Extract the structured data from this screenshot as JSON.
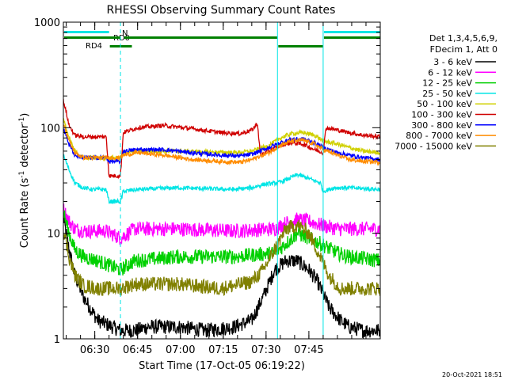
{
  "chart_data": {
    "type": "line",
    "title": "RHESSI Observing Summary Count Rates",
    "xlabel": "Start Time (17-Oct-05 06:19:22)",
    "ylabel_parts": [
      "Count Rate (s",
      "-1",
      " detector",
      "-1",
      ")"
    ],
    "y_scale": "log",
    "ylim": [
      1,
      1000
    ],
    "x_range_min": [
      0,
      111
    ],
    "x_ticks": [
      {
        "min": 11,
        "label": "06:30"
      },
      {
        "min": 26,
        "label": "06:45"
      },
      {
        "min": 41,
        "label": "07:00"
      },
      {
        "min": 56,
        "label": "07:15"
      },
      {
        "min": 71,
        "label": "07:30"
      },
      {
        "min": 86,
        "label": "07:45"
      }
    ],
    "y_ticks": [
      {
        "value": 1,
        "label": "1"
      },
      {
        "value": 10,
        "label": "10"
      },
      {
        "value": 100,
        "label": "100"
      },
      {
        "value": 1000,
        "label": "1000"
      }
    ],
    "legend_header": [
      "Det 1,3,4,5,6,9,",
      "FDecim 1, Att 0"
    ],
    "timestamp": "20-Oct-2021 18:51",
    "flag_labels": {
      "night": "N",
      "rd0": "RD0",
      "rd4": "RD4"
    },
    "flag_color": "#008000",
    "night_color": "#00e5e5",
    "night_intervals_min": [
      [
        0,
        16
      ],
      [
        91,
        111
      ]
    ],
    "boundaries_min": {
      "solid": [
        0,
        75,
        91
      ],
      "dashed": [
        20,
        111
      ]
    },
    "series": [
      {
        "name": "3 - 6 keV",
        "color": "#000000",
        "x": [
          0,
          2,
          4,
          7,
          12,
          20,
          25,
          30,
          40,
          50,
          60,
          66,
          70,
          74,
          78,
          82,
          86,
          89,
          93,
          97,
          100,
          105,
          111
        ],
        "y": [
          14,
          7,
          4,
          2.5,
          1.5,
          1.2,
          1.2,
          1.3,
          1.3,
          1.2,
          1.3,
          1.5,
          2.5,
          4.5,
          5.5,
          5.5,
          4.5,
          3.5,
          2,
          1.5,
          1.3,
          1.2,
          1.2
        ]
      },
      {
        "name": "6 - 12 keV",
        "color": "#ff00ff",
        "x": [
          0,
          2,
          4,
          8,
          15,
          20,
          25,
          40,
          60,
          74,
          78,
          82,
          86,
          90,
          96,
          111
        ],
        "y": [
          17,
          13,
          11,
          10.5,
          10.5,
          9,
          11,
          11,
          10.5,
          11,
          12.5,
          13.5,
          13,
          12,
          11,
          11
        ]
      },
      {
        "name": "12 - 25 keV",
        "color": "#00d000",
        "x": [
          0,
          2,
          4,
          7,
          12,
          20,
          25,
          40,
          60,
          74,
          78,
          82,
          86,
          90,
          96,
          100,
          111
        ],
        "y": [
          16,
          10,
          7,
          6,
          5.5,
          4.5,
          5.5,
          6,
          6,
          6.5,
          8,
          10,
          9,
          8,
          6.5,
          6,
          5.5
        ]
      },
      {
        "name": "25 - 50 keV",
        "color": "#00e5e5",
        "x": [
          0,
          2,
          4,
          7,
          10,
          15,
          16,
          20,
          21,
          26,
          40,
          60,
          66,
          70,
          75,
          78,
          82,
          86,
          90,
          91,
          95,
          100,
          111
        ],
        "y": [
          55,
          40,
          30,
          27,
          26,
          26,
          20,
          20,
          25,
          26,
          27,
          26,
          27,
          29,
          30,
          32,
          36,
          33,
          30,
          25,
          27,
          27,
          26
        ]
      },
      {
        "name": "50 - 100 keV",
        "color": "#d0d000",
        "x": [
          0,
          2,
          4,
          7,
          15,
          16,
          20,
          21,
          26,
          40,
          60,
          66,
          72,
          76,
          80,
          84,
          88,
          91,
          96,
          100,
          105,
          111
        ],
        "y": [
          120,
          80,
          60,
          52,
          52,
          52,
          52,
          58,
          60,
          60,
          58,
          60,
          68,
          80,
          88,
          90,
          85,
          75,
          70,
          65,
          60,
          58
        ]
      },
      {
        "name": "100 - 300 keV",
        "color": "#d00000",
        "x": [
          0,
          1,
          2,
          4,
          7,
          15,
          16,
          20,
          21,
          26,
          35,
          45,
          55,
          62,
          66,
          68,
          69,
          72,
          76,
          80,
          84,
          88,
          91,
          92,
          96,
          100,
          105,
          111
        ],
        "y": [
          180,
          140,
          105,
          85,
          82,
          82,
          35,
          35,
          90,
          100,
          105,
          98,
          90,
          88,
          95,
          110,
          55,
          60,
          68,
          72,
          70,
          62,
          58,
          100,
          95,
          90,
          85,
          82
        ]
      },
      {
        "name": "300 - 800 keV",
        "color": "#0000ff",
        "x": [
          0,
          2,
          4,
          7,
          15,
          16,
          20,
          21,
          26,
          35,
          45,
          55,
          62,
          66,
          72,
          76,
          80,
          84,
          88,
          91,
          96,
          100,
          105,
          111
        ],
        "y": [
          100,
          70,
          55,
          52,
          52,
          48,
          48,
          60,
          62,
          62,
          58,
          55,
          54,
          56,
          65,
          72,
          78,
          78,
          72,
          65,
          58,
          55,
          52,
          50
        ]
      },
      {
        "name": "800 - 7000 keV",
        "color": "#ff8c00",
        "x": [
          0,
          2,
          4,
          7,
          15,
          20,
          21,
          26,
          35,
          45,
          55,
          62,
          66,
          72,
          76,
          80,
          84,
          88,
          91,
          96,
          100,
          105,
          111
        ],
        "y": [
          110,
          75,
          58,
          52,
          52,
          52,
          55,
          58,
          55,
          50,
          48,
          47,
          50,
          58,
          68,
          75,
          76,
          70,
          62,
          55,
          50,
          48,
          47
        ]
      },
      {
        "name": "7000 - 15000 keV",
        "color": "#808000",
        "x": [
          0,
          2,
          4,
          7,
          12,
          20,
          25,
          40,
          55,
          60,
          66,
          70,
          74,
          78,
          82,
          86,
          90,
          93,
          97,
          100,
          111
        ],
        "y": [
          11,
          6,
          4,
          3.2,
          3,
          3,
          3.3,
          3.3,
          3,
          3.2,
          3.5,
          4.5,
          7,
          11,
          12,
          10,
          6,
          4,
          3,
          3,
          3
        ]
      }
    ]
  }
}
